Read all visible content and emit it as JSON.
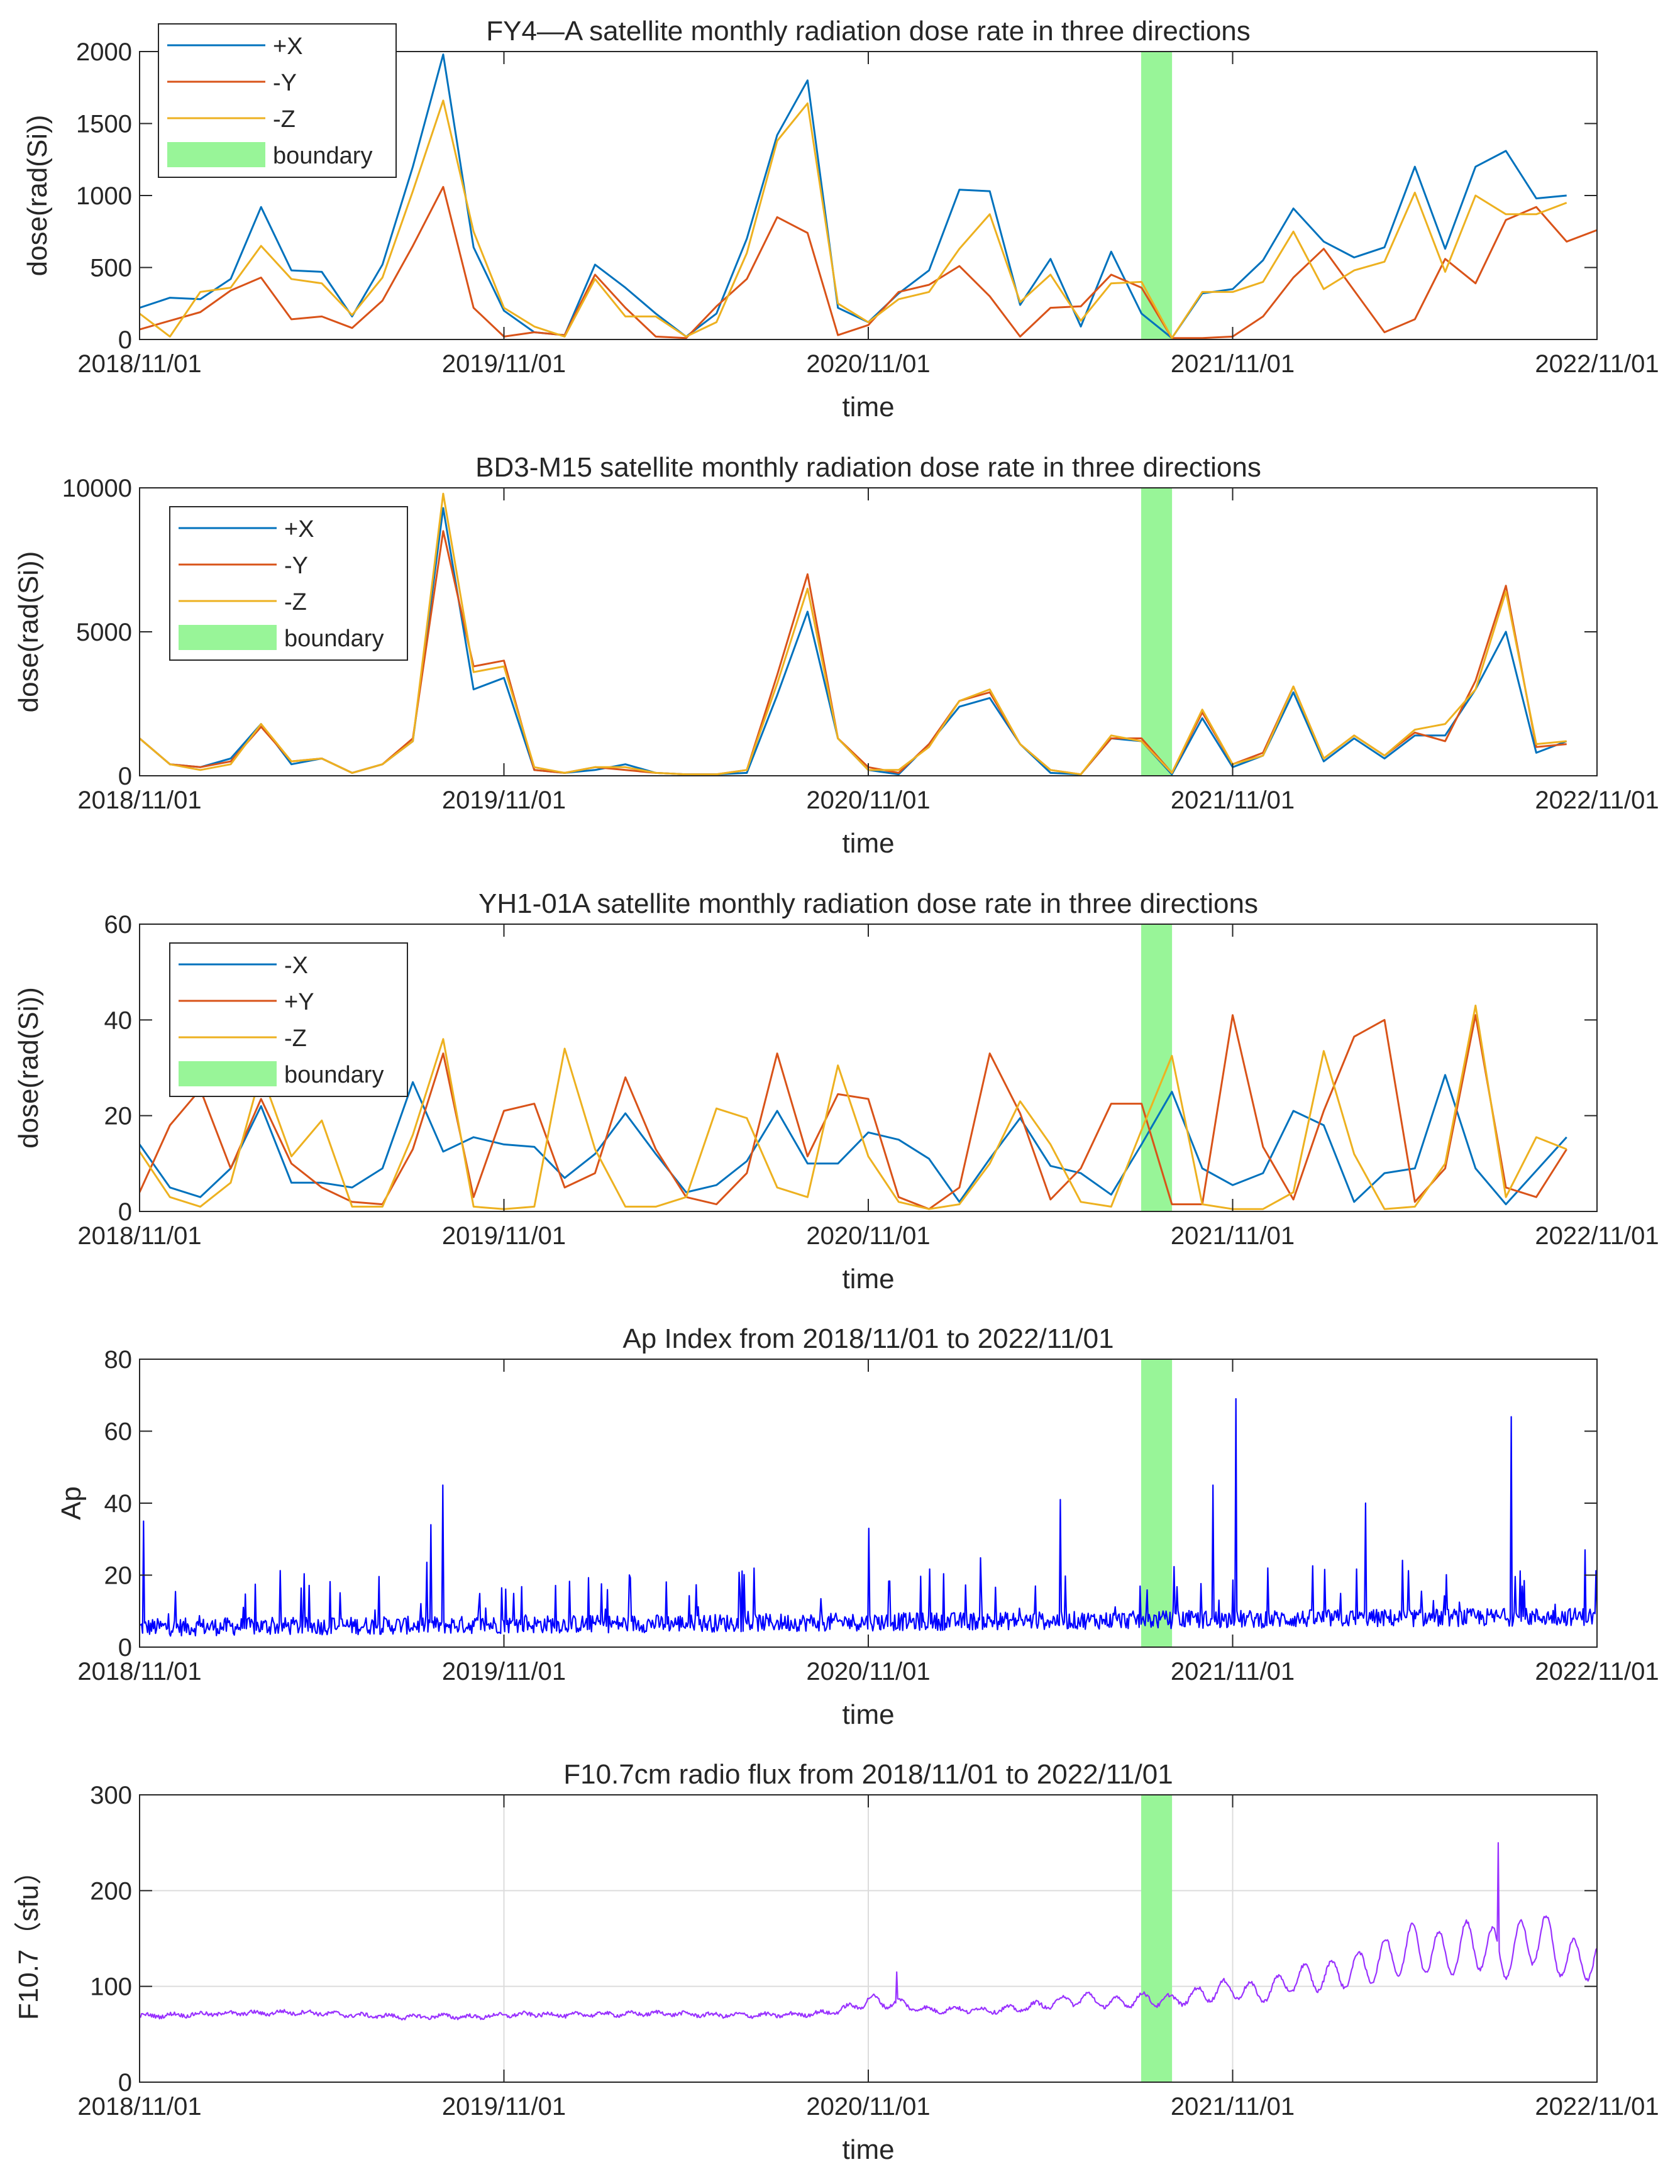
{
  "x_tick_labels": [
    "2018/11/01",
    "2019/11/01",
    "2020/11/01",
    "2021/11/01",
    "2022/11/01"
  ],
  "colors": {
    "blue": "#0072BD",
    "orange": "#D95319",
    "yellow": "#EDB120",
    "boundary": "#98F598",
    "ap_line": "#0000FF",
    "f107_line": "#9932FF"
  },
  "chart_data": [
    {
      "type": "line",
      "title": "FY4—A satellite monthly radiation dose rate in three directions",
      "xlabel": "time",
      "ylabel": "dose(rad(Si))",
      "xlim": [
        "2018/11/01",
        "2022/11/01"
      ],
      "ylim": [
        0,
        2000
      ],
      "yticks": [
        "0",
        "500",
        "1000",
        "1500",
        "2000"
      ],
      "grid": false,
      "legend_position": "top-left",
      "legend": [
        "+X",
        "-Y",
        "-Z",
        "boundary"
      ],
      "boundary": [
        "2021/08/01",
        "2021/09/01"
      ],
      "series": [
        {
          "name": "+X",
          "color": "#0072BD",
          "values": [
            220,
            290,
            280,
            420,
            920,
            480,
            470,
            160,
            520,
            1200,
            1980,
            640,
            200,
            50,
            30,
            520,
            360,
            180,
            20,
            180,
            700,
            1420,
            1800,
            220,
            120,
            320,
            480,
            1040,
            1030,
            240,
            560,
            90,
            610,
            180,
            10,
            320,
            350,
            550,
            910,
            680,
            570,
            640,
            1200,
            630,
            1200,
            1310,
            980,
            1000
          ]
        },
        {
          "name": "-Y",
          "color": "#D95319",
          "values": [
            70,
            130,
            190,
            340,
            430,
            140,
            160,
            80,
            270,
            650,
            1060,
            220,
            20,
            50,
            30,
            450,
            220,
            20,
            10,
            230,
            420,
            850,
            740,
            30,
            100,
            330,
            380,
            510,
            300,
            20,
            220,
            230,
            450,
            360,
            10,
            10,
            20,
            160,
            430,
            630,
            340,
            50,
            140,
            560,
            390,
            830,
            920,
            680,
            760
          ]
        },
        {
          "name": "-Z",
          "color": "#EDB120",
          "values": [
            180,
            20,
            330,
            360,
            650,
            420,
            390,
            170,
            430,
            1030,
            1660,
            750,
            220,
            90,
            20,
            420,
            160,
            160,
            20,
            120,
            600,
            1380,
            1640,
            250,
            120,
            280,
            330,
            630,
            870,
            260,
            450,
            130,
            390,
            400,
            10,
            330,
            330,
            400,
            750,
            350,
            480,
            540,
            1020,
            470,
            1000,
            870,
            870,
            950
          ]
        }
      ]
    },
    {
      "type": "line",
      "title": "BD3-M15 satellite monthly radiation dose rate in three directions",
      "xlabel": "time",
      "ylabel": "dose(rad(Si))",
      "xlim": [
        "2018/11/01",
        "2022/11/01"
      ],
      "ylim": [
        0,
        10000
      ],
      "yticks": [
        "0",
        "5000",
        "10000"
      ],
      "grid": false,
      "legend_position": "top-left",
      "legend": [
        "+X",
        "-Y",
        "-Z",
        "boundary"
      ],
      "boundary": [
        "2021/08/01",
        "2021/09/01"
      ],
      "series": [
        {
          "name": "+X",
          "color": "#0072BD",
          "values": [
            1300,
            400,
            300,
            600,
            1800,
            400,
            600,
            100,
            400,
            1200,
            9300,
            3000,
            3400,
            200,
            100,
            200,
            400,
            100,
            50,
            50,
            100,
            2800,
            5700,
            1300,
            200,
            50,
            1100,
            2400,
            2700,
            1100,
            100,
            50,
            1300,
            1200,
            50,
            2000,
            300,
            700,
            2900,
            500,
            1300,
            600,
            1400,
            1400,
            3000,
            5000,
            800,
            1200
          ]
        },
        {
          "name": "-Y",
          "color": "#D95319",
          "values": [
            1300,
            400,
            300,
            500,
            1700,
            500,
            600,
            100,
            400,
            1300,
            8500,
            3800,
            4000,
            200,
            100,
            300,
            200,
            100,
            50,
            50,
            200,
            3500,
            7000,
            1300,
            300,
            100,
            1100,
            2600,
            2900,
            1100,
            200,
            50,
            1300,
            1300,
            100,
            2200,
            400,
            800,
            3100,
            600,
            1400,
            700,
            1500,
            1200,
            3300,
            6600,
            1000,
            1100
          ]
        },
        {
          "name": "-Z",
          "color": "#EDB120",
          "values": [
            1300,
            400,
            200,
            400,
            1800,
            500,
            600,
            100,
            400,
            1200,
            9800,
            3600,
            3800,
            300,
            100,
            300,
            300,
            100,
            50,
            50,
            200,
            3200,
            6500,
            1300,
            200,
            200,
            1000,
            2600,
            3000,
            1100,
            200,
            50,
            1400,
            1200,
            100,
            2300,
            400,
            700,
            3100,
            600,
            1400,
            700,
            1600,
            1800,
            3000,
            6400,
            1100,
            1200
          ]
        }
      ]
    },
    {
      "type": "line",
      "title": "YH1-01A satellite monthly radiation dose rate in three directions",
      "xlabel": "time",
      "ylabel": "dose(rad(Si))",
      "xlim": [
        "2018/11/01",
        "2022/11/01"
      ],
      "ylim": [
        0,
        60
      ],
      "yticks": [
        "0",
        "20",
        "40",
        "60"
      ],
      "grid": false,
      "legend_position": "top-left",
      "legend": [
        "-X",
        "+Y",
        "-Z",
        "boundary"
      ],
      "boundary": [
        "2021/08/01",
        "2021/09/01"
      ],
      "series": [
        {
          "name": "-X",
          "color": "#0072BD",
          "values": [
            14,
            5,
            3,
            9,
            22,
            6,
            6,
            5,
            9,
            27,
            12.5,
            15.5,
            14,
            13.5,
            7,
            12,
            20.5,
            12,
            4,
            5.5,
            10.5,
            21,
            10,
            10,
            16.5,
            15,
            11,
            2,
            11,
            19.5,
            9.5,
            8,
            3.5,
            14,
            25,
            9,
            5.5,
            8,
            21,
            18,
            2,
            8,
            9,
            28.5,
            9,
            1.5,
            8.5,
            15.5
          ]
        },
        {
          "name": "+Y",
          "color": "#D95319",
          "values": [
            4,
            18,
            25.5,
            9,
            23.5,
            10,
            5,
            2,
            1.5,
            13,
            33,
            3,
            21,
            22.5,
            5,
            8,
            28,
            13,
            3,
            1.5,
            8,
            33,
            11.5,
            24.5,
            23.5,
            3,
            0.5,
            5,
            33,
            20.5,
            2.5,
            9,
            22.5,
            22.5,
            1.5,
            1.5,
            41,
            13.5,
            2.5,
            21,
            36.5,
            40,
            2,
            9,
            41,
            5,
            3,
            13
          ]
        },
        {
          "name": "-Z",
          "color": "#EDB120",
          "values": [
            12.5,
            3,
            1,
            6,
            29,
            11.5,
            19,
            1,
            1,
            16,
            36,
            1,
            0.5,
            1,
            34,
            13,
            1,
            1,
            3,
            21.5,
            19.5,
            5,
            3,
            30.5,
            11.5,
            2,
            0.5,
            1.5,
            10,
            23,
            14,
            2,
            1,
            17,
            32.5,
            1.5,
            0.5,
            0.5,
            4,
            33.5,
            12,
            0.5,
            1,
            10,
            43,
            3,
            15.5,
            13
          ]
        }
      ]
    },
    {
      "type": "line",
      "title": "Ap Index from 2018/11/01 to 2022/11/01",
      "xlabel": "time",
      "ylabel": "Ap",
      "xlim": [
        "2018/11/01",
        "2022/11/01"
      ],
      "ylim": [
        0,
        80
      ],
      "yticks": [
        "0",
        "20",
        "40",
        "60",
        "80"
      ],
      "grid": false,
      "boundary": [
        "2021/08/01",
        "2021/09/01"
      ],
      "resolution": "daily",
      "peaks": [
        {
          "date": "2018/11/05",
          "value": 35
        },
        {
          "date": "2019/08/20",
          "value": 34
        },
        {
          "date": "2019/09/01",
          "value": 45
        },
        {
          "date": "2020/11/01",
          "value": 33
        },
        {
          "date": "2021/05/12",
          "value": 41
        },
        {
          "date": "2021/10/12",
          "value": 45
        },
        {
          "date": "2021/11/04",
          "value": 69
        },
        {
          "date": "2022/03/14",
          "value": 40
        },
        {
          "date": "2022/08/07",
          "value": 64
        },
        {
          "date": "2022/10/20",
          "value": 27
        }
      ]
    },
    {
      "type": "line",
      "title": "F10.7cm radio flux from 2018/11/01 to 2022/11/01",
      "xlabel": "time",
      "ylabel": "F10.7（sfu）",
      "xlim": [
        "2018/11/01",
        "2022/11/01"
      ],
      "ylim": [
        0,
        300
      ],
      "yticks": [
        "0",
        "100",
        "200",
        "300"
      ],
      "grid": true,
      "boundary": [
        "2021/08/01",
        "2021/09/01"
      ],
      "resolution": "daily",
      "monthly_level": [
        69,
        70,
        71,
        72,
        72,
        73,
        72,
        70,
        69,
        68,
        69,
        68,
        70,
        71,
        70,
        71,
        71,
        72,
        71,
        70,
        70,
        70,
        71,
        74,
        85,
        82,
        75,
        76,
        75,
        77,
        82,
        88,
        82,
        87,
        85,
        92,
        98,
        92,
        108,
        110,
        117,
        128,
        142,
        132,
        146,
        130,
        156,
        128
      ],
      "peaks": [
        {
          "date": "2020/11/29",
          "value": 115
        },
        {
          "date": "2022/07/25",
          "value": 250
        }
      ]
    }
  ]
}
